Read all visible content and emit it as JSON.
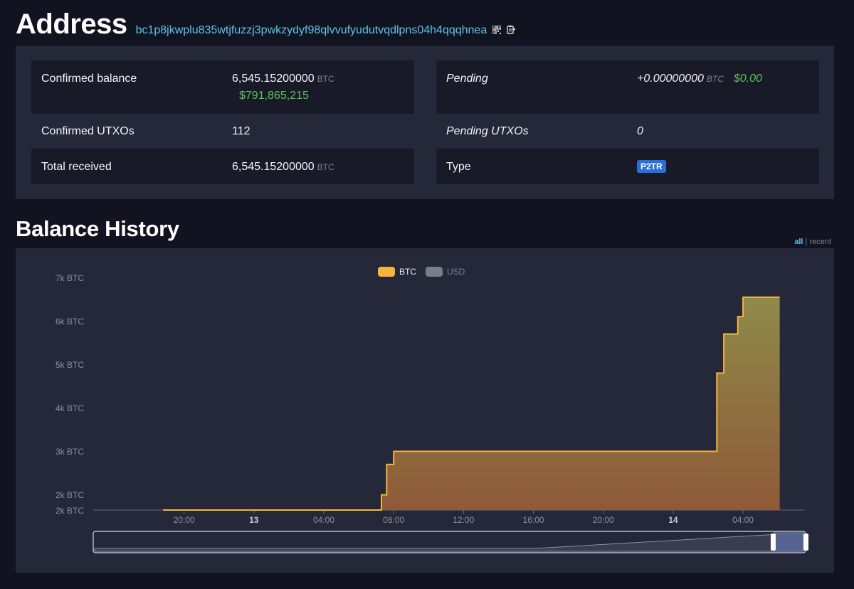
{
  "header": {
    "title": "Address",
    "address": "bc1p8jkwplu835wtjfuzzj3pwkzydyf98qlvvufyudutvqdlpns04h4qqqhnea",
    "icons": [
      "qr-code-icon",
      "copy-icon"
    ]
  },
  "summary": {
    "confirmed_balance_label": "Confirmed balance",
    "confirmed_balance_value": "6,545.15200000",
    "confirmed_balance_unit": "BTC",
    "confirmed_balance_usd": "$791,865,215",
    "pending_label": "Pending",
    "pending_value": "+0.00000000",
    "pending_unit": "BTC",
    "pending_usd": "$0.00",
    "confirmed_utxos_label": "Confirmed UTXOs",
    "confirmed_utxos_value": "112",
    "pending_utxos_label": "Pending UTXOs",
    "pending_utxos_value": "0",
    "total_received_label": "Total received",
    "total_received_value": "6,545.15200000",
    "total_received_unit": "BTC",
    "type_label": "Type",
    "type_value": "P2TR"
  },
  "colors": {
    "accent_link": "#5ec3e8",
    "btc_series": "#f5b43c",
    "usd_series": "#7a7d86",
    "positive": "#5cc35c",
    "badge": "#2b6fd6"
  },
  "balance_history": {
    "title": "Balance History",
    "range_all": "all",
    "range_separator": "|",
    "range_recent": "recent",
    "selected_range": "all"
  },
  "chart_data": {
    "type": "area",
    "legend": [
      {
        "name": "BTC",
        "active": true
      },
      {
        "name": "USD",
        "active": false
      }
    ],
    "legend_position": "top-center",
    "y_ticks": [
      "7k BTC",
      "6k BTC",
      "5k BTC",
      "4k BTC",
      "3k BTC",
      "2k BTC",
      "2k BTC"
    ],
    "x_ticks": [
      "20:00",
      "13",
      "04:00",
      "08:00",
      "12:00",
      "16:00",
      "20:00",
      "14",
      "04:00"
    ],
    "x_ticks_bold": [
      "13",
      "14"
    ],
    "step": true,
    "series": [
      {
        "name": "BTC",
        "x_hours": [
          18.8,
          31.3,
          31.6,
          32.0,
          50.5,
          50.9,
          51.7,
          52.0,
          52.5,
          54.1
        ],
        "values": [
          0,
          2000,
          2700,
          3000,
          4800,
          5700,
          6100,
          6545.152,
          6545.152,
          6545.152
        ]
      }
    ],
    "ylim": [
      1650,
      7000
    ],
    "grid": false,
    "zoom_slider": {
      "start": 0.955,
      "end": 1.0
    }
  }
}
